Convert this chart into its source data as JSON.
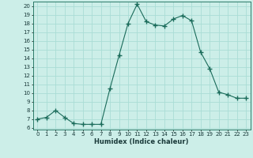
{
  "x": [
    0,
    1,
    2,
    3,
    4,
    5,
    6,
    7,
    8,
    9,
    10,
    11,
    12,
    13,
    14,
    15,
    16,
    17,
    18,
    19,
    20,
    21,
    22,
    23
  ],
  "y": [
    7.0,
    7.2,
    8.0,
    7.2,
    6.5,
    6.4,
    6.4,
    6.4,
    10.5,
    14.3,
    18.0,
    20.2,
    18.2,
    17.8,
    17.7,
    18.5,
    18.9,
    18.3,
    14.7,
    12.8,
    10.1,
    9.8,
    9.4,
    9.4
  ],
  "line_color": "#1a6b5a",
  "marker": "+",
  "marker_size": 4,
  "bg_color": "#cceee8",
  "grid_color": "#aaddd5",
  "xlabel": "Humidex (Indice chaleur)",
  "ylabel_ticks": [
    6,
    7,
    8,
    9,
    10,
    11,
    12,
    13,
    14,
    15,
    16,
    17,
    18,
    19,
    20
  ],
  "ylim": [
    5.8,
    20.5
  ],
  "xlim": [
    -0.5,
    23.5
  ],
  "tick_fontsize": 5.0,
  "xlabel_fontsize": 6.0
}
